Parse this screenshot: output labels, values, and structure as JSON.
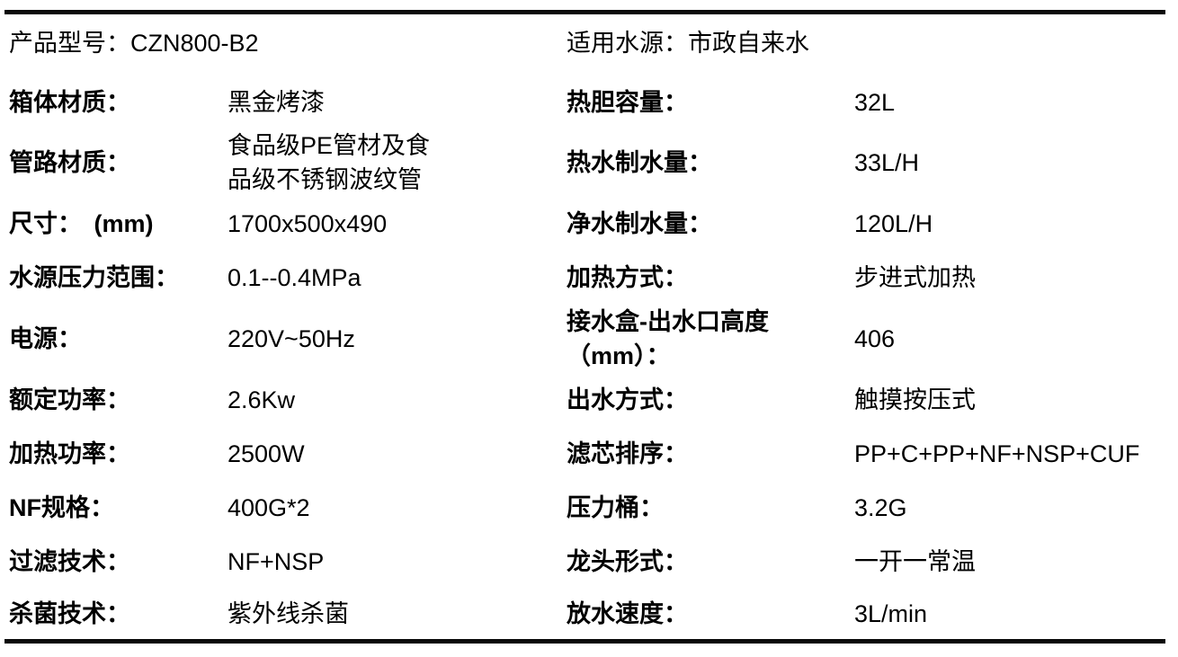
{
  "page": {
    "background_color": "#ffffff",
    "text_color": "#000000",
    "rule_color": "#0a0a0a"
  },
  "header": {
    "product_model_label": "产品型号：",
    "product_model_value": "CZN800-B2",
    "water_source_label": "适用水源：",
    "water_source_value": "市政自来水"
  },
  "spec_rows": [
    {
      "left_label": "箱体材质：",
      "left_value": "黑金烤漆",
      "right_label": "热胆容量：",
      "right_value": "32L"
    },
    {
      "left_label": "管路材质：",
      "left_value": "食品级PE管材及食\n品级不锈钢波纹管",
      "right_label": "热水制水量：",
      "right_value": "33L/H"
    },
    {
      "left_label": "尺寸：　(mm)",
      "left_value": "1700x500x490",
      "right_label": "净水制水量：",
      "right_value": "120L/H"
    },
    {
      "left_label": "水源压力范围：",
      "left_value": "0.1--0.4MPa",
      "right_label": "加热方式：",
      "right_value": "步进式加热"
    },
    {
      "left_label": "电源：",
      "left_value": "220V~50Hz",
      "right_label": "接水盒-出水口高度\n（mm）：",
      "right_value": "406"
    },
    {
      "left_label": "额定功率：",
      "left_value": "2.6Kw",
      "right_label": "出水方式：",
      "right_value": "触摸按压式"
    },
    {
      "left_label": "加热功率：",
      "left_value": "2500W",
      "right_label": "滤芯排序：",
      "right_value": "PP+C+PP+NF+NSP+CUF"
    },
    {
      "left_label": "NF规格：",
      "left_value": "400G*2",
      "right_label": "压力桶：",
      "right_value": "3.2G"
    },
    {
      "left_label": "过滤技术：",
      "left_value": "NF+NSP",
      "right_label": "龙头形式：",
      "right_value": "一开一常温"
    },
    {
      "left_label": "杀菌技术：",
      "left_value": "紫外线杀菌",
      "right_label": "放水速度：",
      "right_value": "3L/min"
    }
  ]
}
